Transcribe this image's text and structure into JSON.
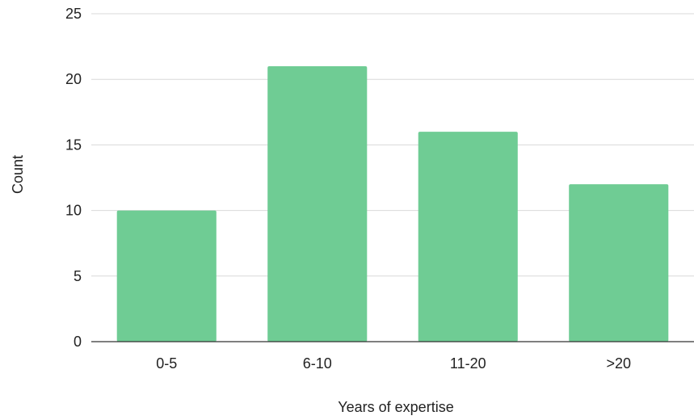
{
  "chart_data": {
    "type": "bar",
    "categories": [
      "0-5",
      "6-10",
      "11-20",
      ">20"
    ],
    "values": [
      10,
      21,
      16,
      12
    ],
    "title": "",
    "xlabel": "Years of expertise",
    "ylabel": "Count",
    "ylim": [
      0,
      25
    ],
    "yticks": [
      0,
      5,
      10,
      15,
      20,
      25
    ],
    "grid": true,
    "legend": "none",
    "colors": {
      "bar": "#6fcc94",
      "grid": "#d9d9d9",
      "axis": "#333333",
      "text": "#222222"
    }
  }
}
